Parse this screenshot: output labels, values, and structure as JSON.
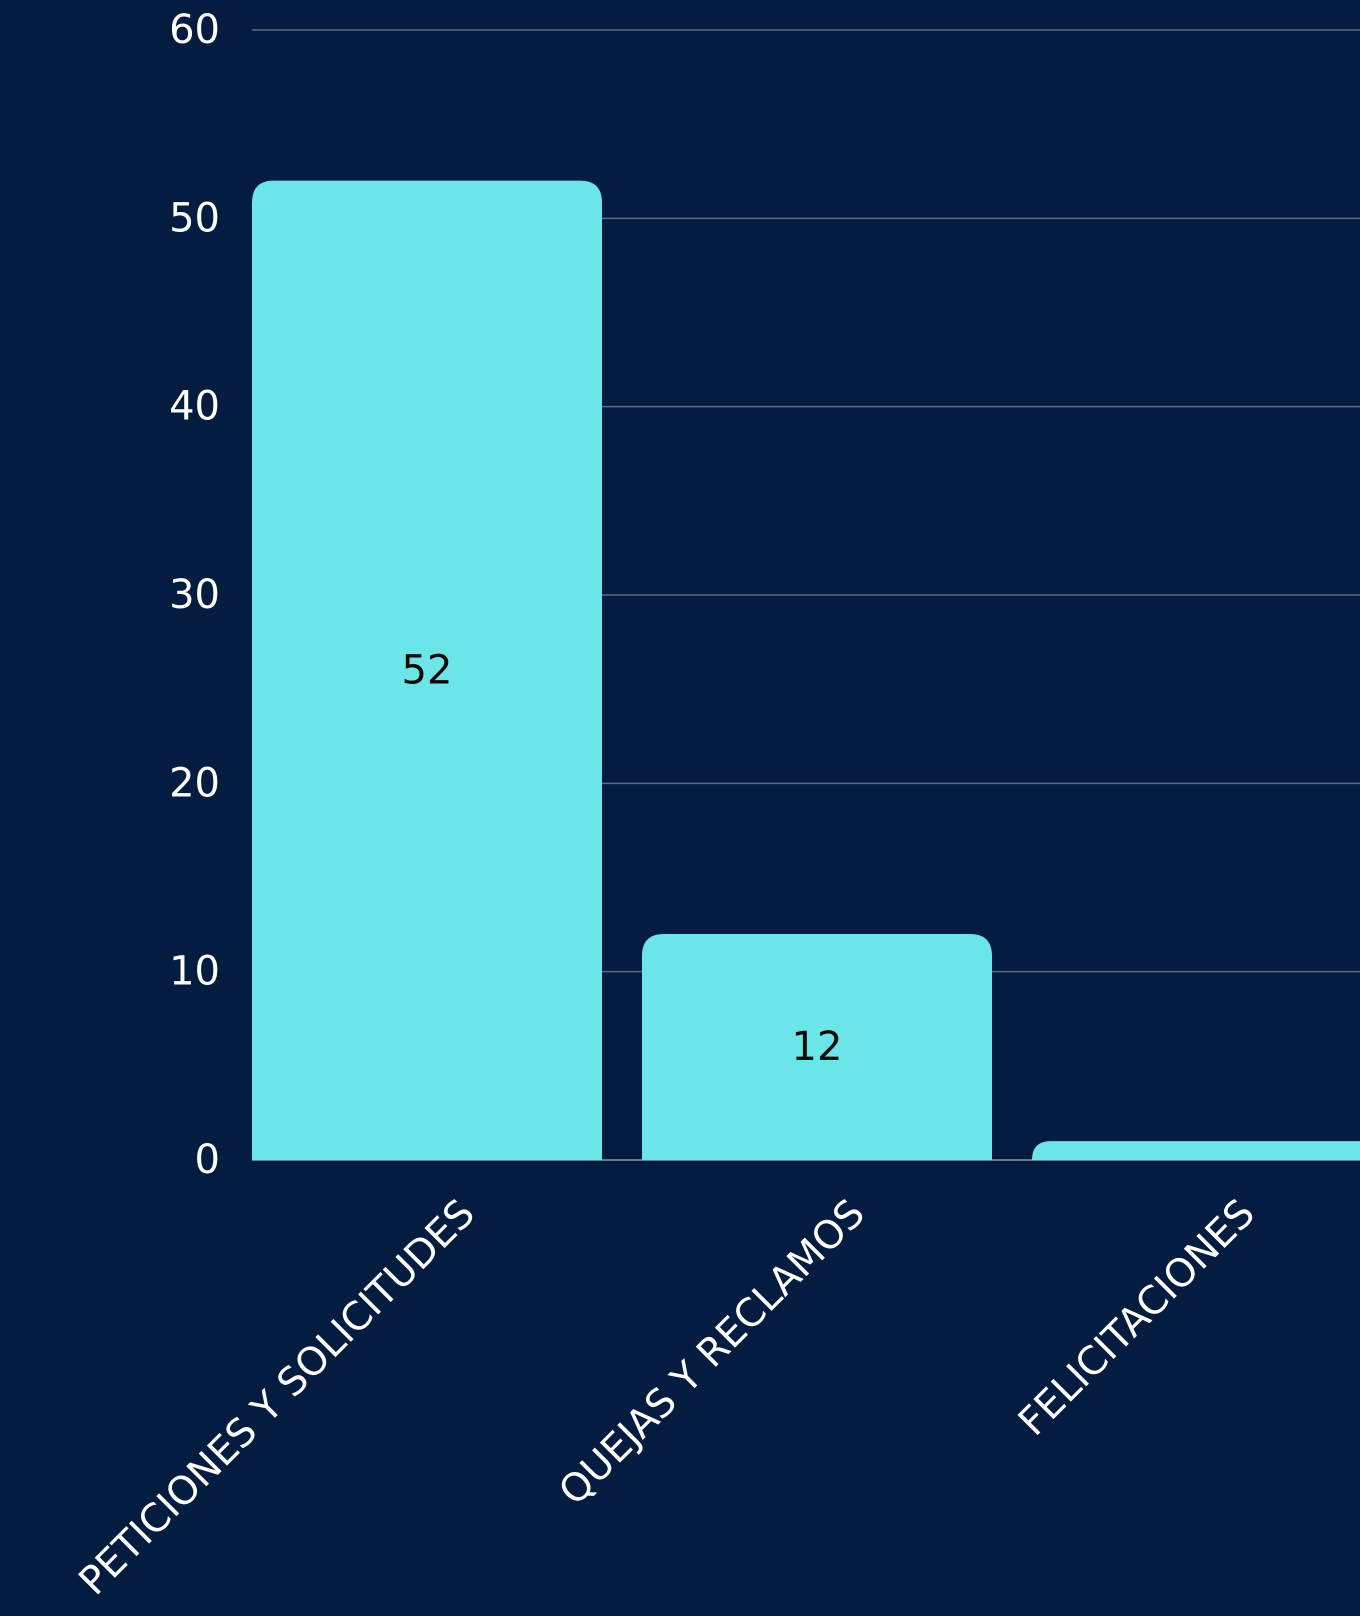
{
  "chart_data": {
    "type": "bar",
    "categories": [
      "PETICIONES Y SOLICITUDES",
      "QUEJAS Y RECLAMOS",
      "FELICITACIONES"
    ],
    "values": [
      52,
      12,
      1
    ],
    "data_labels": [
      "52",
      "12",
      ""
    ],
    "ylim": [
      0,
      60
    ],
    "yticks": [
      0,
      10,
      20,
      30,
      40,
      50,
      60
    ],
    "title": "",
    "xlabel": "",
    "ylabel": "",
    "grid": true,
    "legend": "none",
    "colors": {
      "background": "#041c3f",
      "bar": "#6ce5e9",
      "grid": "#5d6a80",
      "tick_text": "#ffffff",
      "data_label_text": "#0a0a0a"
    }
  }
}
